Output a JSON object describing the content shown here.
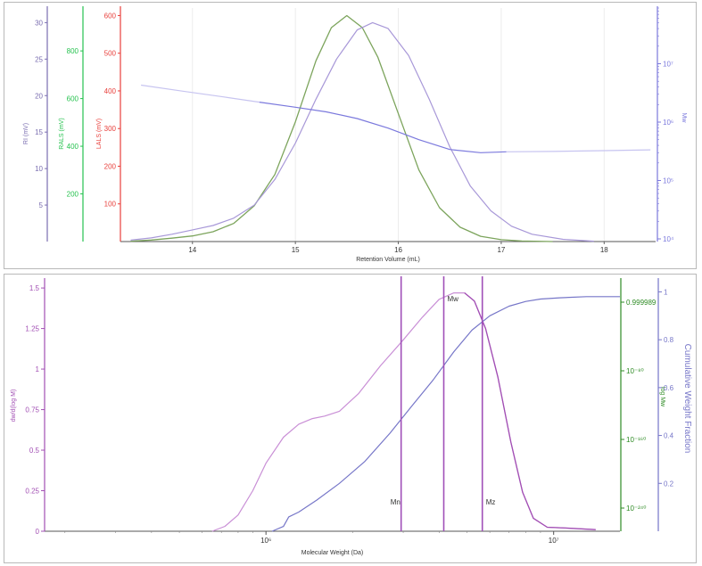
{
  "colors": {
    "ri": "#7a6db0",
    "rals": "#26c24f",
    "lals": "#e8403c",
    "mw": "#7b79dd",
    "green_trace": "#7ca45c",
    "purple_trace": "#a898d8",
    "dw": "#a24fb4",
    "dw_light": "#c98fd6",
    "cum": "#7676c8",
    "marker": "#a050b8",
    "log_axis": "#2e8b24"
  },
  "chart_data": [
    {
      "type": "line",
      "xlabel": "Retention Volume (mL)",
      "xlim": [
        13.3,
        18.5
      ],
      "x_ticks": [
        "14",
        "15",
        "16",
        "17",
        "18"
      ],
      "axes": {
        "ri": {
          "label": "RI (mV)",
          "ylim": [
            0,
            32
          ],
          "ticks": [
            "5",
            "10",
            "15",
            "20",
            "25",
            "30"
          ]
        },
        "rals": {
          "label": "RALS (mV)",
          "ylim": [
            0,
            980
          ],
          "ticks": [
            "200",
            "400",
            "600",
            "800"
          ]
        },
        "lals": {
          "label": "LALS (mV)",
          "ylim": [
            0,
            620
          ],
          "ticks": [
            "100",
            "200",
            "300",
            "400",
            "500",
            "600"
          ]
        },
        "mw": {
          "label": "Mw",
          "scale": "log",
          "ylim": [
            9000,
            90000000
          ],
          "ticks": [
            "10⁴",
            "10⁵",
            "10⁶",
            "10⁷"
          ]
        }
      },
      "series": [
        {
          "axis": "lals",
          "x": [
            13.4,
            13.6,
            13.8,
            14.0,
            14.2,
            14.4,
            14.6,
            14.8,
            15.0,
            15.2,
            15.35,
            15.5,
            15.65,
            15.8,
            16.0,
            16.2,
            16.4,
            16.6,
            16.8,
            17.0,
            17.2,
            17.5
          ],
          "y": [
            1,
            4,
            9,
            15,
            26,
            48,
            95,
            178,
            318,
            480,
            568,
            600,
            568,
            490,
            340,
            190,
            90,
            38,
            14,
            5,
            1.5,
            0
          ]
        },
        {
          "axis": "ri",
          "x": [
            13.4,
            13.6,
            13.8,
            14.0,
            14.2,
            14.4,
            14.6,
            14.8,
            15.0,
            15.2,
            15.4,
            15.6,
            15.75,
            15.9,
            16.1,
            16.3,
            16.5,
            16.7,
            16.9,
            17.1,
            17.3,
            17.6,
            17.9
          ],
          "y": [
            0.2,
            0.5,
            1,
            1.6,
            2.2,
            3.2,
            5,
            8.5,
            13.5,
            19.5,
            25,
            29,
            30,
            29.2,
            25.5,
            19.5,
            13,
            7.6,
            4.2,
            2.1,
            1,
            0.3,
            0.05
          ]
        },
        {
          "axis": "mw",
          "x": [
            13.5,
            13.9,
            14.3,
            14.65
          ],
          "y": [
            4300000,
            3400000,
            2700000,
            2200000
          ]
        },
        {
          "axis": "mw",
          "x": [
            14.65,
            15.0,
            15.3,
            15.6,
            15.9,
            16.2,
            16.5,
            16.8,
            17.05
          ],
          "y": [
            2200000,
            1800000,
            1500000,
            1150000,
            790000,
            500000,
            340000,
            300000,
            310000
          ]
        },
        {
          "axis": "mw",
          "x": [
            17.05,
            17.5,
            18.0,
            18.45
          ],
          "y": [
            310000,
            315000,
            325000,
            335000
          ]
        }
      ]
    },
    {
      "type": "line",
      "xlabel": "Molecular Weight (Da)",
      "xscale": "log",
      "xlim": [
        170000,
        17000000
      ],
      "x_ticks": [
        "10⁶",
        "10⁷"
      ],
      "axes": {
        "dw": {
          "label": "dw/d(log M)",
          "ylim": [
            0,
            1.55
          ],
          "ticks": [
            "0",
            "0.25",
            "0.5",
            "0.75",
            "1",
            "1.25",
            "1.5"
          ]
        },
        "logfrac": {
          "label": "log Mw",
          "ticks": [
            "0.999989",
            "10⁻⁸⁰",
            "10⁻¹⁶⁰",
            "10⁻²⁴⁰"
          ]
        },
        "cum": {
          "label": "Cumulative Weight Fraction",
          "ylim": [
            0,
            1.05
          ],
          "ticks": [
            "0.2",
            "0.4",
            "0.6",
            "0.8",
            "1"
          ]
        }
      },
      "series": [
        {
          "axis": "dw",
          "x": [
            650000,
            720000,
            800000,
            900000,
            1000000,
            1150000,
            1300000,
            1450000,
            1600000,
            1800000,
            2100000,
            2500000,
            3000000,
            3500000,
            4000000,
            4500000,
            4900000,
            5300000,
            5800000,
            6400000,
            7100000,
            7800000,
            8500000,
            9500000,
            11000000,
            14000000
          ],
          "y": [
            0,
            0.03,
            0.1,
            0.25,
            0.42,
            0.58,
            0.66,
            0.695,
            0.71,
            0.74,
            0.85,
            1.02,
            1.18,
            1.32,
            1.43,
            1.47,
            1.47,
            1.42,
            1.25,
            0.95,
            0.55,
            0.24,
            0.08,
            0.025,
            0.02,
            0.01
          ]
        },
        {
          "axis": "cum",
          "x": [
            1050000,
            1150000,
            1200000,
            1300000,
            1500000,
            1800000,
            2200000,
            2700000,
            3200000,
            3800000,
            4500000,
            5200000,
            6000000,
            7000000,
            8000000,
            9000000,
            10500000,
            13000000,
            17000000
          ],
          "y": [
            0,
            0.02,
            0.06,
            0.08,
            0.13,
            0.2,
            0.29,
            0.41,
            0.52,
            0.63,
            0.75,
            0.84,
            0.9,
            0.94,
            0.96,
            0.97,
            0.975,
            0.98,
            0.98
          ]
        }
      ],
      "markers": [
        {
          "label": "Mn",
          "x": 2950000
        },
        {
          "label": "Mw",
          "x": 4150000
        },
        {
          "label": "Mz",
          "x": 5650000
        }
      ]
    }
  ]
}
